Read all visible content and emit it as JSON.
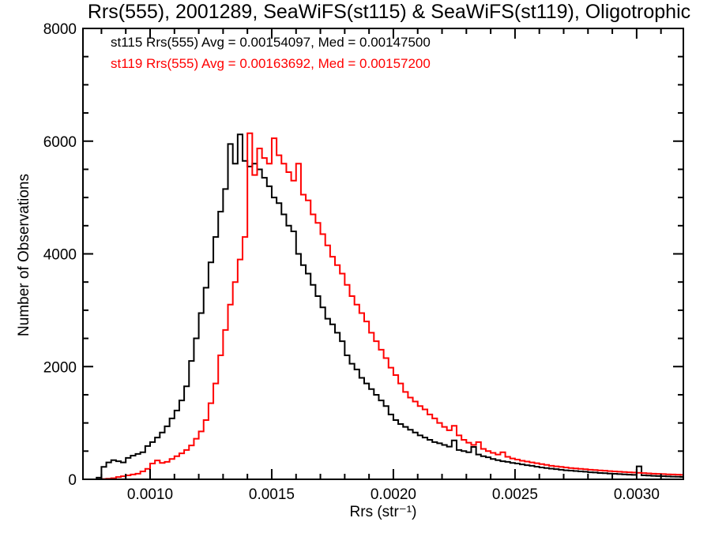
{
  "chart_data": {
    "type": "line",
    "style": "step-histogram",
    "title": "Rrs(555), 2001289, SeaWiFS(st115) & SeaWiFS(st119), Oligotrophic",
    "xlabel": "Rrs (str⁻¹)",
    "ylabel": "Number of Observations",
    "grid": false,
    "background": "#ffffff",
    "frame_color": "#000000",
    "legend_position": "top-left-inside",
    "xlim": [
      0.000724,
      0.003192
    ],
    "ylim": [
      0,
      8000
    ],
    "x_axis": {
      "major_ticks": [
        0.001,
        0.0015,
        0.002,
        0.0025,
        0.003
      ],
      "tick_labels": [
        "0.0010",
        "0.0015",
        "0.0020",
        "0.0025",
        "0.0030"
      ],
      "minor_tick_step": 0.0001
    },
    "y_axis": {
      "major_ticks": [
        0,
        2000,
        4000,
        6000,
        8000
      ],
      "tick_labels": [
        "0",
        "2000",
        "4000",
        "6000",
        "8000"
      ],
      "minor_tick_step": 500
    },
    "bin_width": 2e-05,
    "x": [
      0.00074,
      0.00076,
      0.00078,
      0.0008,
      0.00082,
      0.00084,
      0.00086,
      0.00088,
      0.0009,
      0.00092,
      0.00094,
      0.00096,
      0.00098,
      0.001,
      0.00102,
      0.00104,
      0.00106,
      0.00108,
      0.0011,
      0.00112,
      0.00114,
      0.00116,
      0.00118,
      0.0012,
      0.00122,
      0.00124,
      0.00126,
      0.00128,
      0.0013,
      0.00132,
      0.00134,
      0.00136,
      0.00138,
      0.0014,
      0.00142,
      0.00144,
      0.00146,
      0.00148,
      0.0015,
      0.00152,
      0.00154,
      0.00156,
      0.00158,
      0.0016,
      0.00162,
      0.00164,
      0.00166,
      0.00168,
      0.0017,
      0.00172,
      0.00174,
      0.00176,
      0.00178,
      0.0018,
      0.00182,
      0.00184,
      0.00186,
      0.00188,
      0.0019,
      0.00192,
      0.00194,
      0.00196,
      0.00198,
      0.002,
      0.00202,
      0.00204,
      0.00206,
      0.00208,
      0.0021,
      0.00212,
      0.00214,
      0.00216,
      0.00218,
      0.0022,
      0.00222,
      0.00224,
      0.00226,
      0.00228,
      0.0023,
      0.00232,
      0.00234,
      0.00236,
      0.00238,
      0.0024,
      0.00242,
      0.00244,
      0.00246,
      0.00248,
      0.0025,
      0.00252,
      0.00254,
      0.00256,
      0.00258,
      0.0026,
      0.00262,
      0.00264,
      0.00266,
      0.00268,
      0.0027,
      0.00272,
      0.00274,
      0.00276,
      0.00278,
      0.0028,
      0.00282,
      0.00284,
      0.00286,
      0.00288,
      0.0029,
      0.00292,
      0.00294,
      0.00296,
      0.00298,
      0.003,
      0.00302,
      0.00304,
      0.00306,
      0.00308,
      0.0031,
      0.00312,
      0.00314,
      0.00316,
      0.00318,
      0.0032
    ],
    "series": [
      {
        "name": "st115",
        "label": "st115 Rrs(555) Avg = 0.00154097, Med = 0.00147500",
        "color": "#000000",
        "avg": 0.00154097,
        "med": 0.001475,
        "values": [
          0,
          0,
          30,
          220,
          300,
          340,
          320,
          300,
          380,
          420,
          450,
          480,
          590,
          660,
          740,
          830,
          940,
          1080,
          1220,
          1400,
          1650,
          2100,
          2500,
          2950,
          3400,
          3850,
          4300,
          4750,
          5150,
          5950,
          5600,
          6120,
          5650,
          5550,
          5600,
          5500,
          5350,
          5200,
          5000,
          4900,
          4700,
          4500,
          4400,
          4000,
          3800,
          3650,
          3450,
          3250,
          3050,
          2850,
          2750,
          2600,
          2450,
          2200,
          2050,
          1950,
          1800,
          1700,
          1600,
          1500,
          1400,
          1300,
          1150,
          1050,
          980,
          930,
          880,
          830,
          780,
          740,
          700,
          660,
          640,
          610,
          580,
          690,
          520,
          500,
          480,
          575,
          440,
          410,
          390,
          360,
          340,
          320,
          310,
          290,
          280,
          265,
          250,
          240,
          225,
          210,
          200,
          190,
          180,
          170,
          160,
          155,
          148,
          140,
          135,
          125,
          120,
          112,
          108,
          102,
          98,
          92,
          88,
          82,
          78,
          230,
          70,
          66,
          62,
          58,
          54,
          50,
          48,
          45,
          42,
          40
        ]
      },
      {
        "name": "st119",
        "label": "st119 Rrs(555) Avg = 0.00163692, Med = 0.00157200",
        "color": "#ff0000",
        "avg": 0.00163692,
        "med": 0.001572,
        "values": [
          0,
          0,
          0,
          5,
          10,
          20,
          40,
          55,
          70,
          85,
          100,
          140,
          185,
          280,
          335,
          290,
          310,
          360,
          410,
          460,
          520,
          600,
          720,
          850,
          1050,
          1350,
          1700,
          2200,
          2650,
          3100,
          3500,
          3900,
          4300,
          6140,
          5400,
          5870,
          5700,
          5600,
          6050,
          5750,
          5600,
          5450,
          5300,
          5600,
          5050,
          4950,
          4700,
          4550,
          4350,
          4150,
          3950,
          3800,
          3650,
          3450,
          3250,
          3100,
          2950,
          2800,
          2600,
          2450,
          2300,
          2150,
          1980,
          1850,
          1700,
          1550,
          1450,
          1380,
          1300,
          1240,
          1150,
          1080,
          1000,
          930,
          870,
          950,
          780,
          700,
          650,
          610,
          660,
          540,
          500,
          470,
          440,
          480,
          400,
          370,
          350,
          330,
          315,
          300,
          285,
          270,
          255,
          240,
          230,
          220,
          210,
          200,
          192,
          185,
          178,
          170,
          165,
          158,
          152,
          146,
          140,
          135,
          130,
          125,
          120,
          115,
          110,
          105,
          100,
          96,
          92,
          88,
          85,
          82,
          79,
          76
        ]
      }
    ]
  }
}
